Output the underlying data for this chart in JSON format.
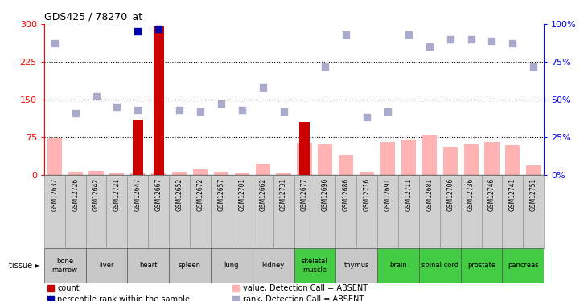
{
  "title": "GDS425 / 78270_at",
  "samples": [
    "GSM12637",
    "GSM12726",
    "GSM12642",
    "GSM12721",
    "GSM12647",
    "GSM12667",
    "GSM12652",
    "GSM12672",
    "GSM12657",
    "GSM12701",
    "GSM12662",
    "GSM12731",
    "GSM12677",
    "GSM12696",
    "GSM12686",
    "GSM12716",
    "GSM12691",
    "GSM12711",
    "GSM12681",
    "GSM12706",
    "GSM12736",
    "GSM12746",
    "GSM12741",
    "GSM12751"
  ],
  "count_bars": [
    0,
    0,
    0,
    0,
    110,
    295,
    0,
    0,
    0,
    0,
    0,
    0,
    105,
    0,
    0,
    0,
    0,
    0,
    0,
    0,
    0,
    0,
    0,
    0
  ],
  "pink_bars": [
    73,
    5,
    8,
    3,
    3,
    3,
    5,
    10,
    5,
    3,
    22,
    3,
    63,
    60,
    40,
    5,
    65,
    70,
    80,
    55,
    60,
    65,
    58,
    18
  ],
  "blue_dots_pct": [
    null,
    null,
    null,
    null,
    95,
    97,
    null,
    null,
    null,
    null,
    null,
    null,
    null,
    null,
    null,
    null,
    null,
    null,
    null,
    null,
    null,
    null,
    null,
    null
  ],
  "light_blue_dots_pct": [
    87,
    41,
    52,
    45,
    43,
    null,
    43,
    42,
    47,
    43,
    58,
    42,
    null,
    72,
    93,
    38,
    42,
    93,
    85,
    90,
    90,
    89,
    87,
    72
  ],
  "ylim_left": [
    0,
    300
  ],
  "ylim_right": [
    0,
    100
  ],
  "yticks_left": [
    0,
    75,
    150,
    225,
    300
  ],
  "yticks_right": [
    0,
    25,
    50,
    75,
    100
  ],
  "ytick_labels_right": [
    "0%",
    "25%",
    "50%",
    "75%",
    "100%"
  ],
  "bar_color_dark": "#cc0000",
  "bar_color_pink": "#ffb3b3",
  "dot_color_blue": "#0000aa",
  "dot_color_light_blue": "#aaaacc",
  "groups": [
    {
      "label": "bone\nmarrow",
      "start": 0,
      "end": 1,
      "color": "#c8c8c8"
    },
    {
      "label": "liver",
      "start": 2,
      "end": 3,
      "color": "#c8c8c8"
    },
    {
      "label": "heart",
      "start": 4,
      "end": 5,
      "color": "#c8c8c8"
    },
    {
      "label": "spleen",
      "start": 6,
      "end": 7,
      "color": "#c8c8c8"
    },
    {
      "label": "lung",
      "start": 8,
      "end": 9,
      "color": "#c8c8c8"
    },
    {
      "label": "kidney",
      "start": 10,
      "end": 11,
      "color": "#c8c8c8"
    },
    {
      "label": "skeletal\nmuscle",
      "start": 12,
      "end": 13,
      "color": "#44cc44"
    },
    {
      "label": "thymus",
      "start": 14,
      "end": 15,
      "color": "#c8c8c8"
    },
    {
      "label": "brain",
      "start": 16,
      "end": 17,
      "color": "#44cc44"
    },
    {
      "label": "spinal cord",
      "start": 18,
      "end": 19,
      "color": "#44cc44"
    },
    {
      "label": "prostate",
      "start": 20,
      "end": 21,
      "color": "#44cc44"
    },
    {
      "label": "pancreas",
      "start": 22,
      "end": 23,
      "color": "#44cc44"
    }
  ]
}
